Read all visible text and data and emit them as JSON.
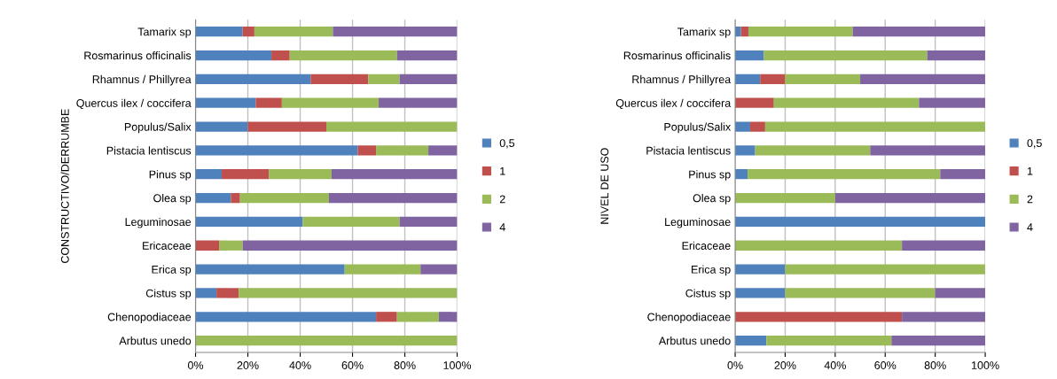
{
  "chart_data": [
    {
      "type": "bar",
      "orientation": "horizontal",
      "stacked": true,
      "ylabel": "CONSTRUCTIVO/DERRUMBE",
      "categories": [
        "Tamarix sp",
        "Rosmarinus officinalis",
        "Rhamnus / Phillyrea",
        "Quercus ilex / coccifera",
        "Populus/Salix",
        "Pistacia lentiscus",
        "Pinus sp",
        "Olea sp",
        "Leguminosae",
        "Ericaceae",
        "Erica sp",
        "Cistus sp",
        "Chenopodiaceae",
        "Arbutus unedo"
      ],
      "series": [
        {
          "name": "0,5",
          "color": "#4f81bd",
          "values": [
            18,
            29,
            44,
            23,
            20,
            62,
            10,
            13.5,
            41,
            0,
            57,
            8,
            69,
            0
          ]
        },
        {
          "name": "1",
          "color": "#c0504d",
          "values": [
            4.5,
            7,
            22,
            10,
            30,
            7,
            18,
            3.5,
            0,
            9,
            0,
            8.5,
            8,
            0
          ]
        },
        {
          "name": "2",
          "color": "#9bbb59",
          "values": [
            30,
            41,
            12,
            37,
            50,
            20,
            24,
            34,
            37,
            9,
            29,
            83.5,
            16,
            100
          ]
        },
        {
          "name": "4",
          "color": "#8064a2",
          "values": [
            47.5,
            23,
            22,
            30,
            0,
            11,
            48,
            49,
            22,
            82,
            14,
            0,
            7,
            0
          ]
        }
      ],
      "xlim": [
        0,
        100
      ],
      "xticks": [
        {
          "value": 0,
          "label": "0%"
        },
        {
          "value": 20,
          "label": "20%"
        },
        {
          "value": 40,
          "label": "40%"
        },
        {
          "value": 60,
          "label": "60%"
        },
        {
          "value": 80,
          "label": "80%"
        },
        {
          "value": 100,
          "label": "100%"
        }
      ],
      "grid": "x",
      "legend": "right"
    },
    {
      "type": "bar",
      "orientation": "horizontal",
      "stacked": true,
      "ylabel": "NIVEL DE USO",
      "categories": [
        "Tamarix sp",
        "Rosmarinus officinalis",
        "Rhamnus / Phillyrea",
        "Quercus ilex / coccifera",
        "Populus/Salix",
        "Pistacia lentiscus",
        "Pinus sp",
        "Olea sp",
        "Leguminosae",
        "Ericaceae",
        "Erica sp",
        "Cistus sp",
        "Chenopodiaceae",
        "Arbutus unedo"
      ],
      "series": [
        {
          "name": "0,5",
          "color": "#4f81bd",
          "values": [
            2.3,
            11.5,
            10,
            0,
            6,
            8,
            5,
            0,
            100,
            0,
            20,
            20,
            0,
            12.5
          ]
        },
        {
          "name": "1",
          "color": "#c0504d",
          "values": [
            3,
            0,
            10,
            15.5,
            6,
            0,
            0,
            0,
            0,
            0,
            0,
            0,
            66.7,
            0
          ]
        },
        {
          "name": "2",
          "color": "#9bbb59",
          "values": [
            41.7,
            65.3,
            30,
            58,
            88,
            46,
            77,
            40,
            0,
            66.7,
            80,
            60,
            0,
            50
          ]
        },
        {
          "name": "4",
          "color": "#8064a2",
          "values": [
            53,
            23.2,
            50,
            26.5,
            0,
            46,
            18,
            60,
            0,
            33.3,
            0,
            20,
            33.3,
            37.5
          ]
        }
      ],
      "xlim": [
        0,
        100
      ],
      "xticks": [
        {
          "value": 0,
          "label": "0%"
        },
        {
          "value": 20,
          "label": "20%"
        },
        {
          "value": 40,
          "label": "40%"
        },
        {
          "value": 60,
          "label": "60%"
        },
        {
          "value": 80,
          "label": "80%"
        },
        {
          "value": 100,
          "label": "100%"
        }
      ],
      "grid": "x",
      "legend": "right"
    }
  ]
}
